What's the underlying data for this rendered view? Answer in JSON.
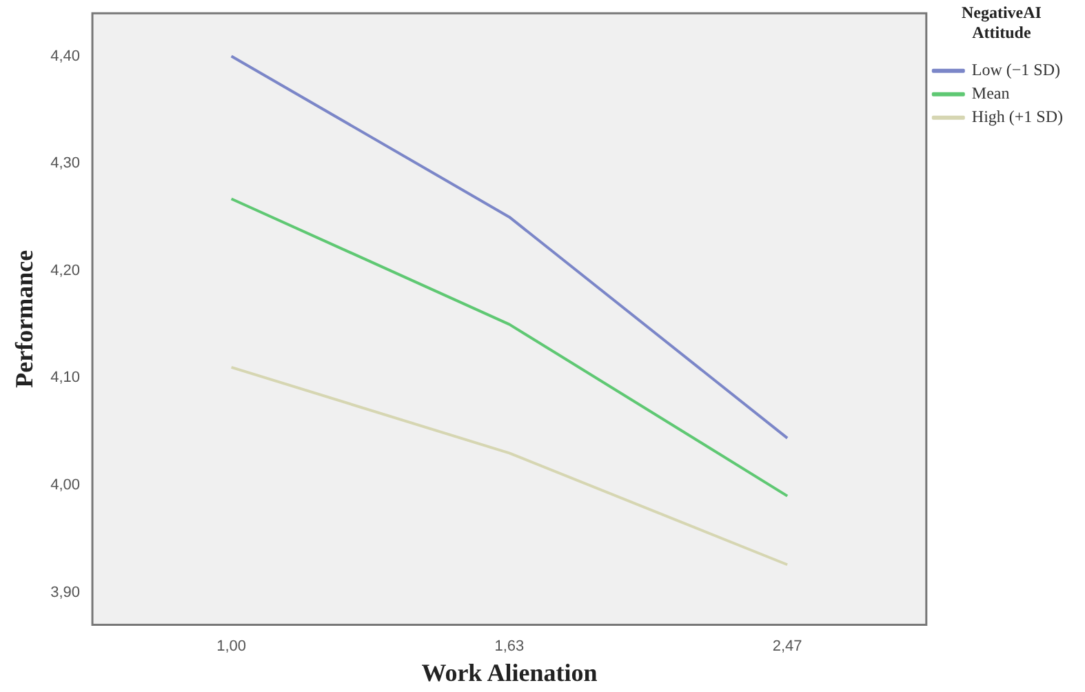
{
  "chart_data": {
    "type": "line",
    "xlabel": "Work Alienation",
    "ylabel": "Performance",
    "legend_title": "NegativeAI Attitude",
    "categories": [
      "1,00",
      "1,63",
      "2,47"
    ],
    "series": [
      {
        "name": "Low (−1 SD)",
        "color": "#7b86c8",
        "values": [
          4.4,
          4.25,
          4.044
        ]
      },
      {
        "name": "Mean",
        "color": "#5fc873",
        "values": [
          4.267,
          4.15,
          3.99
        ]
      },
      {
        "name": "High (+1 SD)",
        "color": "#d6d6b2",
        "values": [
          4.11,
          4.03,
          3.926
        ]
      }
    ],
    "ylim": [
      3.87,
      4.44
    ],
    "yticks": [
      {
        "value": 3.9,
        "label": "3,90"
      },
      {
        "value": 4.0,
        "label": "4,00"
      },
      {
        "value": 4.1,
        "label": "4,10"
      },
      {
        "value": 4.2,
        "label": "4,20"
      },
      {
        "value": 4.3,
        "label": "4,30"
      },
      {
        "value": 4.4,
        "label": "4,40"
      }
    ],
    "grid": false,
    "legend": "top right",
    "marker": "none",
    "line_style": "solid"
  }
}
